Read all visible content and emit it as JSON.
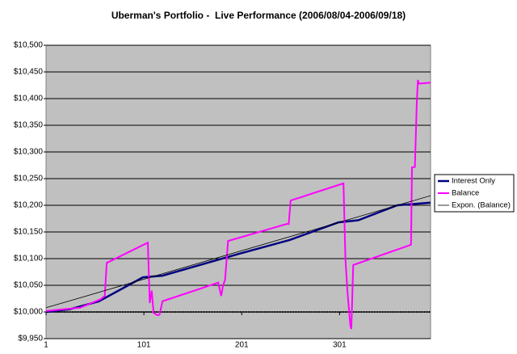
{
  "chart_data": {
    "type": "line",
    "title": "Uberman's Portfolio -  Live Performance (2006/08/04-2006/09/18)",
    "xlim": [
      1,
      394
    ],
    "xticks": [
      1,
      101,
      201,
      301
    ],
    "ylim": [
      9950,
      10500
    ],
    "yticks": [
      {
        "value": 9950,
        "label": "$9,950"
      },
      {
        "value": 10000,
        "label": "$10,000"
      },
      {
        "value": 10050,
        "label": "$10,050"
      },
      {
        "value": 10100,
        "label": "$10,100"
      },
      {
        "value": 10150,
        "label": "$10,150"
      },
      {
        "value": 10200,
        "label": "$10,200"
      },
      {
        "value": 10250,
        "label": "$10,250"
      },
      {
        "value": 10300,
        "label": "$10,300"
      },
      {
        "value": 10350,
        "label": "$10,350"
      },
      {
        "value": 10400,
        "label": "$10,400"
      },
      {
        "value": 10450,
        "label": "$10,450"
      },
      {
        "value": 10500,
        "label": "$10,500"
      }
    ],
    "x_axis_crosses": 10000,
    "grid": true,
    "background": "#c0c0c0",
    "legend": "right",
    "series": [
      {
        "name": "Interest Only",
        "color": "#000080",
        "width": 2.5,
        "x": [
          1,
          25,
          55,
          100,
          120,
          200,
          250,
          300,
          320,
          360,
          394
        ],
        "values": [
          10000,
          10005,
          10020,
          10065,
          10068,
          10110,
          10135,
          10168,
          10172,
          10200,
          10205
        ]
      },
      {
        "name": "Balance",
        "color": "#ff00ff",
        "width": 2,
        "x": [
          1,
          36,
          57,
          61,
          63,
          105,
          107,
          109,
          111,
          115,
          117,
          120,
          123,
          177,
          180,
          182,
          184,
          187,
          247,
          249,
          251,
          305,
          307,
          309,
          312,
          313,
          315,
          374,
          375,
          378,
          380,
          381,
          382,
          394
        ],
        "values": [
          10002,
          10008,
          10024,
          10030,
          10092,
          10130,
          10017,
          10040,
          9998,
          9994,
          9995,
          10020,
          10022,
          10055,
          10030,
          10050,
          10060,
          10133,
          10165,
          10165,
          10209,
          10241,
          10100,
          10040,
          9975,
          9968,
          10088,
          10126,
          10271,
          10272,
          10395,
          10435,
          10428,
          10430
        ]
      },
      {
        "name": "Expon. (Balance)",
        "color": "#000000",
        "width": 0.8,
        "x": [
          1,
          394
        ],
        "values": [
          10008,
          10218
        ]
      }
    ]
  }
}
